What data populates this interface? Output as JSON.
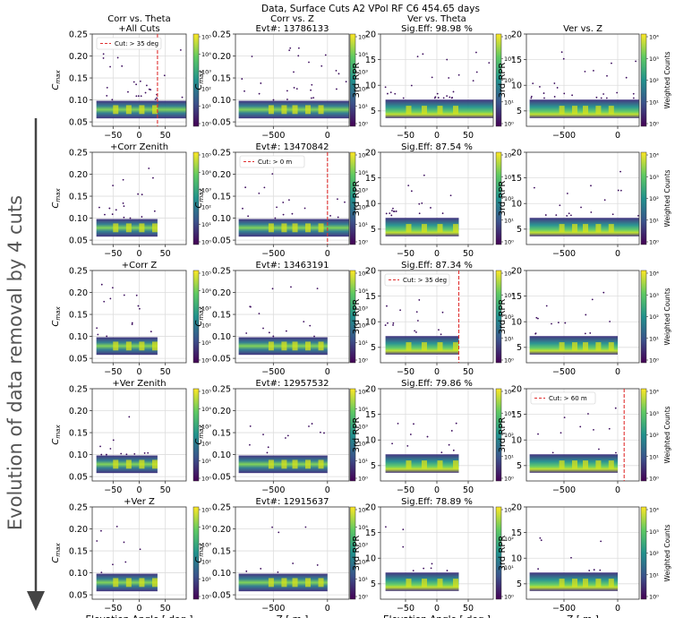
{
  "figure": {
    "suptitle": "Data, Surface Cuts A2 VPol RF C6 454.65 days",
    "side_label": "Evolution of data removal by 4 cuts",
    "colorbar_label": "Weighted Counts",
    "colors": {
      "cmap": [
        "#440154",
        "#3b528b",
        "#21918c",
        "#5ec962",
        "#fde725"
      ],
      "scatter": "#3a0b5c",
      "cut_line": "#e03030",
      "grid": "#dddddd",
      "arrow": "#444444"
    }
  },
  "columns": [
    {
      "key": "corr_theta",
      "header": "Corr vs. Theta",
      "xlabel": "Elevation Angle [ deg ]",
      "ylabel": "C_max",
      "xlim": [
        -90,
        90
      ],
      "ylim": [
        0.04,
        0.25
      ],
      "xticks": [
        -50,
        0,
        50
      ],
      "xtick_labels": [
        "−50",
        "0",
        "50"
      ],
      "yticks": [
        0.05,
        0.1,
        0.15,
        0.2,
        0.25
      ],
      "ytick_labels": [
        "0.05",
        "0.10",
        "0.15",
        "0.20",
        "0.25"
      ]
    },
    {
      "key": "corr_z",
      "header": "Corr vs. Z",
      "xlabel": "Z [ m ]",
      "ylabel": "",
      "xlim": [
        -850,
        200
      ],
      "ylim": [
        0.04,
        0.25
      ],
      "xticks": [
        -500,
        0
      ],
      "xtick_labels": [
        "−500",
        "0"
      ],
      "yticks": [
        0.05,
        0.1,
        0.15,
        0.2,
        0.25
      ],
      "ytick_labels": [
        "0.05",
        "0.10",
        "0.15",
        "0.20",
        "0.25"
      ]
    },
    {
      "key": "ver_theta",
      "header": "Ver vs. Theta",
      "xlabel": "Elevation Angle [ deg ]",
      "ylabel": "3rd RPR",
      "xlim": [
        -90,
        90
      ],
      "ylim": [
        2,
        20
      ],
      "xticks": [
        -50,
        0,
        50
      ],
      "xtick_labels": [
        "−50",
        "0",
        "50"
      ],
      "yticks": [
        5,
        10,
        15,
        20
      ],
      "ytick_labels": [
        "5",
        "10",
        "15",
        "20"
      ]
    },
    {
      "key": "ver_z",
      "header": "Ver vs. Z",
      "xlabel": "Z [ m ]",
      "ylabel": "3rd RPR",
      "xlim": [
        -850,
        200
      ],
      "ylim": [
        2,
        20
      ],
      "xticks": [
        -500,
        0
      ],
      "xtick_labels": [
        "−500",
        "0"
      ],
      "yticks": [
        5,
        10,
        15,
        20
      ],
      "ytick_labels": [
        "5",
        "10",
        "15",
        "20"
      ]
    }
  ],
  "rows": [
    {
      "label": "+All Cuts",
      "evt": "Evt#: 13786133",
      "sig": "Sig.Eff: 98.98 %",
      "theta_max": 90,
      "z_max": 200
    },
    {
      "label": "+Corr Zenith",
      "evt": "Evt#: 13470842",
      "sig": "Sig.Eff: 87.54 %",
      "theta_max": 35,
      "z_max": 200
    },
    {
      "label": "+Corr Z",
      "evt": "Evt#: 13463191",
      "sig": "Sig.Eff: 87.34 %",
      "theta_max": 35,
      "z_max": 0
    },
    {
      "label": "+Ver Zenith",
      "evt": "Evt#: 12957532",
      "sig": "Sig.Eff: 79.86 %",
      "theta_max": 35,
      "z_max": 0
    },
    {
      "label": "+Ver Z",
      "evt": "Evt#: 12915637",
      "sig": "Sig.Eff: 78.89 %",
      "theta_max": 35,
      "z_max": 0
    }
  ],
  "cut_annotations": [
    {
      "row": 0,
      "col": 0,
      "text": "Cut: > 35 deg",
      "value": 35
    },
    {
      "row": 1,
      "col": 1,
      "text": "Cut: > 0 m",
      "value": 0
    },
    {
      "row": 2,
      "col": 2,
      "text": "Cut: > 35 deg",
      "value": 35
    },
    {
      "row": 3,
      "col": 3,
      "text": "Cut: > 60 m",
      "value": 60
    }
  ],
  "colorbars": {
    "corr_theta": [
      {
        "labels": [
          "10⁰",
          "10¹",
          "10²",
          "10³",
          "10⁴",
          "10⁵"
        ]
      },
      {
        "labels": [
          "10⁰",
          "10¹",
          "10²",
          "10³",
          "10⁴",
          "10⁵"
        ]
      },
      {
        "labels": [
          "10⁰",
          "10¹",
          "10²",
          "10³",
          "10⁴",
          "10⁵"
        ]
      },
      {
        "labels": [
          "10⁰",
          "10¹",
          "10²",
          "10³",
          "10⁴",
          "10⁵"
        ]
      },
      {
        "labels": [
          "10⁰",
          "10¹",
          "10²",
          "10³",
          "10⁴",
          "10⁵"
        ]
      }
    ],
    "corr_z": [
      {
        "labels": [
          "10⁰",
          "10¹",
          "10²",
          "10³",
          "10⁴",
          "10⁵"
        ]
      },
      {
        "labels": [
          "10⁰",
          "10¹",
          "10²",
          "10³",
          "10⁴",
          "10⁵"
        ]
      },
      {
        "labels": [
          "10⁰",
          "10¹",
          "10²",
          "10³",
          "10⁴",
          "10⁵"
        ]
      },
      {
        "labels": [
          "10⁰",
          "10¹",
          "10²",
          "10³",
          "10⁴",
          "10⁵"
        ]
      },
      {
        "labels": [
          "10⁰",
          "10¹",
          "10²",
          "10³",
          "10⁴",
          "10⁵"
        ]
      }
    ],
    "ver_theta": [
      {
        "labels": [
          "10⁰",
          "10¹",
          "10²",
          "10³",
          "10⁴"
        ]
      },
      {
        "labels": [
          "10⁰",
          "10¹",
          "10²",
          "10³",
          "10⁴"
        ]
      },
      {
        "labels": [
          "10⁰",
          "10¹",
          "10²",
          "10³",
          "10⁴"
        ]
      },
      {
        "labels": [
          "10⁰",
          "10¹",
          "10²",
          "10³",
          "10⁴"
        ]
      },
      {
        "labels": [
          "10⁰",
          "10¹",
          "10²",
          "10³"
        ]
      }
    ],
    "ver_z": [
      {
        "labels": [
          "10⁰",
          "10¹",
          "10²",
          "10³",
          "10⁴"
        ]
      },
      {
        "labels": [
          "10⁰",
          "10¹",
          "10²",
          "10³",
          "10⁴"
        ]
      },
      {
        "labels": [
          "10⁰",
          "10¹",
          "10²",
          "10³",
          "10⁴"
        ]
      },
      {
        "labels": [
          "10⁰",
          "10¹",
          "10²",
          "10³",
          "10⁴"
        ]
      },
      {
        "labels": [
          "10⁰",
          "10¹",
          "10²",
          "10³",
          "10⁴"
        ]
      }
    ]
  },
  "chart_data": {
    "type": "heatmap",
    "title": "Data, Surface Cuts A2 VPol RF C6 454.65 days",
    "layout": "5 rows x 4 columns of 2D histograms with log colorbars",
    "row_labels": [
      "+All Cuts",
      "+Corr Zenith",
      "+Corr Z",
      "+Ver Zenith",
      "+Ver Z"
    ],
    "column_titles": [
      "Corr vs. Theta",
      "Corr vs. Z",
      "Ver vs. Theta",
      "Ver vs. Z"
    ],
    "events": [
      13786133,
      13470842,
      13463191,
      12957532,
      12915637
    ],
    "signal_efficiency_percent": [
      98.98,
      87.54,
      87.34,
      79.86,
      78.89
    ],
    "axes": {
      "elevation_angle_deg": {
        "ticks": [
          -50,
          0,
          50
        ]
      },
      "z_m": {
        "ticks": [
          -500,
          0
        ]
      },
      "c_max": {
        "ticks": [
          0.05,
          0.1,
          0.15,
          0.2,
          0.25
        ]
      },
      "rpr_3rd": {
        "ticks": [
          5,
          10,
          15,
          20
        ]
      }
    },
    "colorbar_scale": "log",
    "cuts": [
      {
        "variable": "Elevation Angle",
        "threshold": 35,
        "unit": "deg"
      },
      {
        "variable": "Z",
        "threshold": 0,
        "unit": "m"
      },
      {
        "variable": "Elevation Angle",
        "threshold": 35,
        "unit": "deg"
      },
      {
        "variable": "Z",
        "threshold": 60,
        "unit": "m"
      }
    ]
  }
}
